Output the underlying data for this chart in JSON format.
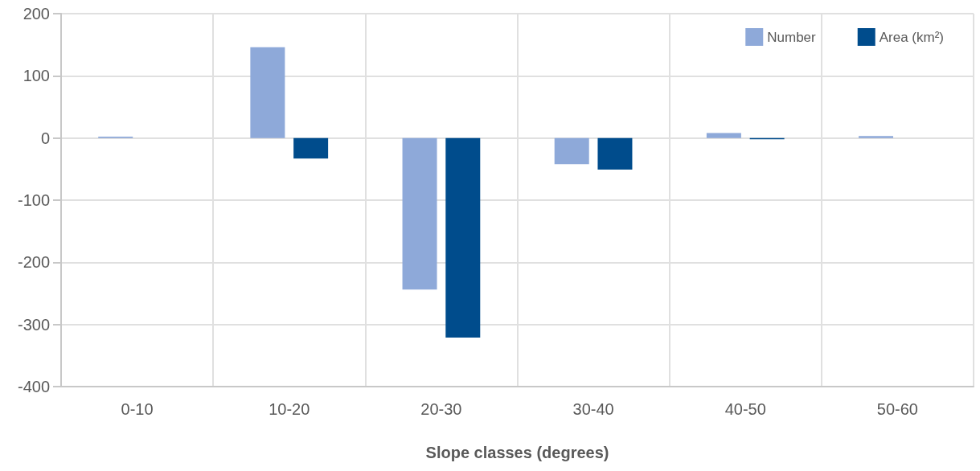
{
  "chart_data": {
    "type": "bar",
    "xlabel": "Slope classes (degrees)",
    "categories": [
      "0-10",
      "10-20",
      "20-30",
      "30-40",
      "40-50",
      "50-60"
    ],
    "series": [
      {
        "name": "Number",
        "color": "#8ea9d9",
        "values": [
          2,
          146,
          -244,
          -42,
          8,
          3
        ]
      },
      {
        "name": "Area (km²)",
        "color": "#004c8c",
        "values": [
          0,
          -33,
          -321,
          -51,
          -2,
          0
        ]
      }
    ],
    "ylim": [
      -400,
      200
    ],
    "yticks": [
      -400,
      -300,
      -200,
      -100,
      0,
      100,
      200
    ],
    "grid": true,
    "legend": "top right"
  }
}
